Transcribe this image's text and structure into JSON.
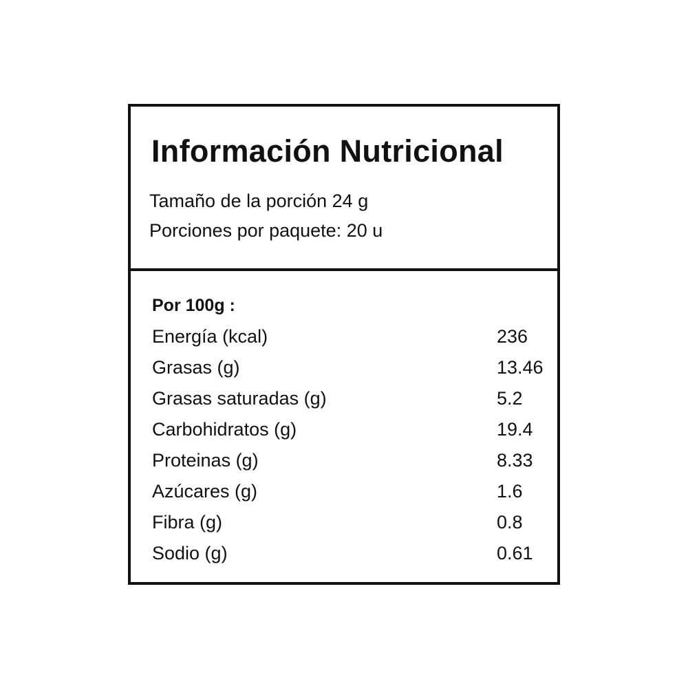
{
  "header": {
    "title": "Información Nutricional",
    "lines": [
      "Tamaño de la porción 24 g",
      "Porciones por paquete: 20 u"
    ]
  },
  "table": {
    "heading": "Por 100g :",
    "rows": [
      [
        "Energía (kcal)",
        "236"
      ],
      [
        "Grasas (g)",
        "13.46"
      ],
      [
        "Grasas saturadas (g)",
        "5.2"
      ],
      [
        "Carbohidratos (g)",
        "19.4"
      ],
      [
        "Proteinas (g)",
        "8.33"
      ],
      [
        "Azúcares (g)",
        "1.6"
      ],
      [
        "Fibra (g)",
        "0.8"
      ],
      [
        "Sodio (g)",
        "0.61"
      ]
    ]
  }
}
